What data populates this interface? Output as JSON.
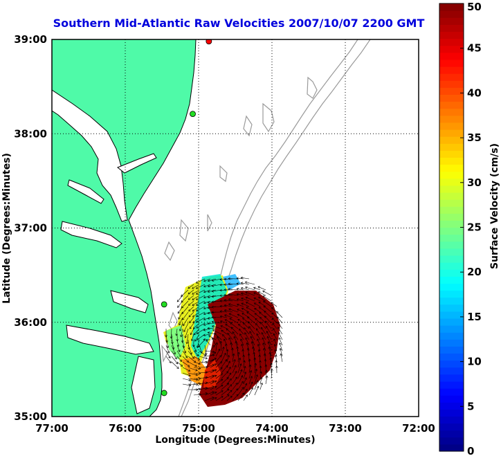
{
  "map": {
    "title": "Southern Mid-Atlantic Raw Velocities 2007/10/07 2200 GMT",
    "x_axis_label": "Longitude (Degrees:Minutes)",
    "y_axis_label": "Latitude (Degrees:Minutes)",
    "lon_range": [
      -77,
      -72
    ],
    "lat_range": [
      35,
      39
    ],
    "lon_ticks": [
      {
        "value": -77,
        "label": "77:00"
      },
      {
        "value": -76,
        "label": "76:00"
      },
      {
        "value": -75,
        "label": "75:00"
      },
      {
        "value": -74,
        "label": "74:00"
      },
      {
        "value": -73,
        "label": "73:00"
      },
      {
        "value": -72,
        "label": "72:00"
      }
    ],
    "lat_ticks": [
      {
        "value": 35,
        "label": "35:00"
      },
      {
        "value": 36,
        "label": "36:00"
      },
      {
        "value": 37,
        "label": "37:00"
      },
      {
        "value": 38,
        "label": "38:00"
      },
      {
        "value": 39,
        "label": "39:00"
      }
    ],
    "grid": true,
    "land_color": "#4ffaa8",
    "bathymetry_color": "#9a9a9a",
    "stations": [
      {
        "lon": -74.86,
        "lat": 38.98,
        "color": "#ff0000"
      },
      {
        "lon": -75.08,
        "lat": 38.21,
        "color": "#22dd22"
      },
      {
        "lon": -75.47,
        "lat": 36.19,
        "color": "#22dd22"
      },
      {
        "lon": -75.47,
        "lat": 35.25,
        "color": "#22dd22"
      }
    ]
  },
  "colorbar": {
    "label": "Surface Velocity (cm/s)",
    "min": 0,
    "max": 50,
    "ticks": [
      {
        "value": 0,
        "label": "0"
      },
      {
        "value": 5,
        "label": "5"
      },
      {
        "value": 10,
        "label": "10"
      },
      {
        "value": 15,
        "label": "15"
      },
      {
        "value": 20,
        "label": "20"
      },
      {
        "value": 25,
        "label": "25"
      },
      {
        "value": 30,
        "label": "30"
      },
      {
        "value": 35,
        "label": "35"
      },
      {
        "value": 40,
        "label": "40"
      },
      {
        "value": 45,
        "label": "45"
      },
      {
        "value": 50,
        "label": "50"
      }
    ],
    "colormap": "jet"
  }
}
